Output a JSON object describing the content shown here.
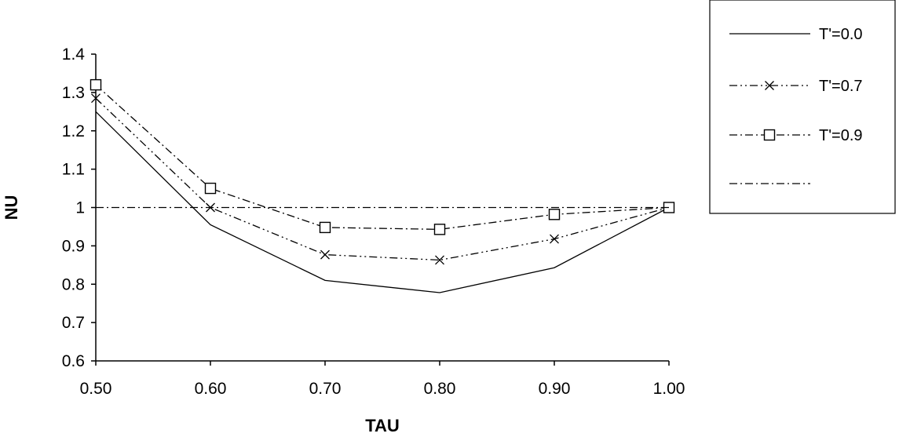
{
  "chart_data": {
    "type": "line",
    "title": "",
    "xlabel": "TAU",
    "ylabel": "NU",
    "x": [
      0.5,
      0.6,
      0.7,
      0.8,
      0.9,
      1.0
    ],
    "x_tick_labels": [
      "0.50",
      "0.60",
      "0.70",
      "0.80",
      "0.90",
      "1.00"
    ],
    "ylim": [
      0.6,
      1.4
    ],
    "y_ticks": [
      0.6,
      0.7,
      0.8,
      0.9,
      1,
      1.1,
      1.2,
      1.3,
      1.4
    ],
    "y_tick_labels": [
      "0.6",
      "0.7",
      "0.8",
      "0.9",
      "1",
      "1.1",
      "1.2",
      "1.3",
      "1.4"
    ],
    "grid": false,
    "legend_position": "top-right",
    "series": [
      {
        "name": "T'=0.0",
        "values": [
          1.25,
          0.955,
          0.81,
          0.778,
          0.843,
          1.0
        ],
        "marker": "none",
        "line": "solid"
      },
      {
        "name": "T'=0.7",
        "values": [
          1.285,
          1.0,
          0.877,
          0.863,
          0.918,
          1.0
        ],
        "marker": "x",
        "line": "dash-dot-dot"
      },
      {
        "name": "T'=0.9",
        "values": [
          1.32,
          1.05,
          0.948,
          0.943,
          0.982,
          1.0
        ],
        "marker": "square",
        "line": "dash-dot"
      },
      {
        "name": "",
        "values": [
          1,
          1,
          1,
          1,
          1,
          1
        ],
        "marker": "none",
        "line": "dash-dot"
      }
    ]
  }
}
